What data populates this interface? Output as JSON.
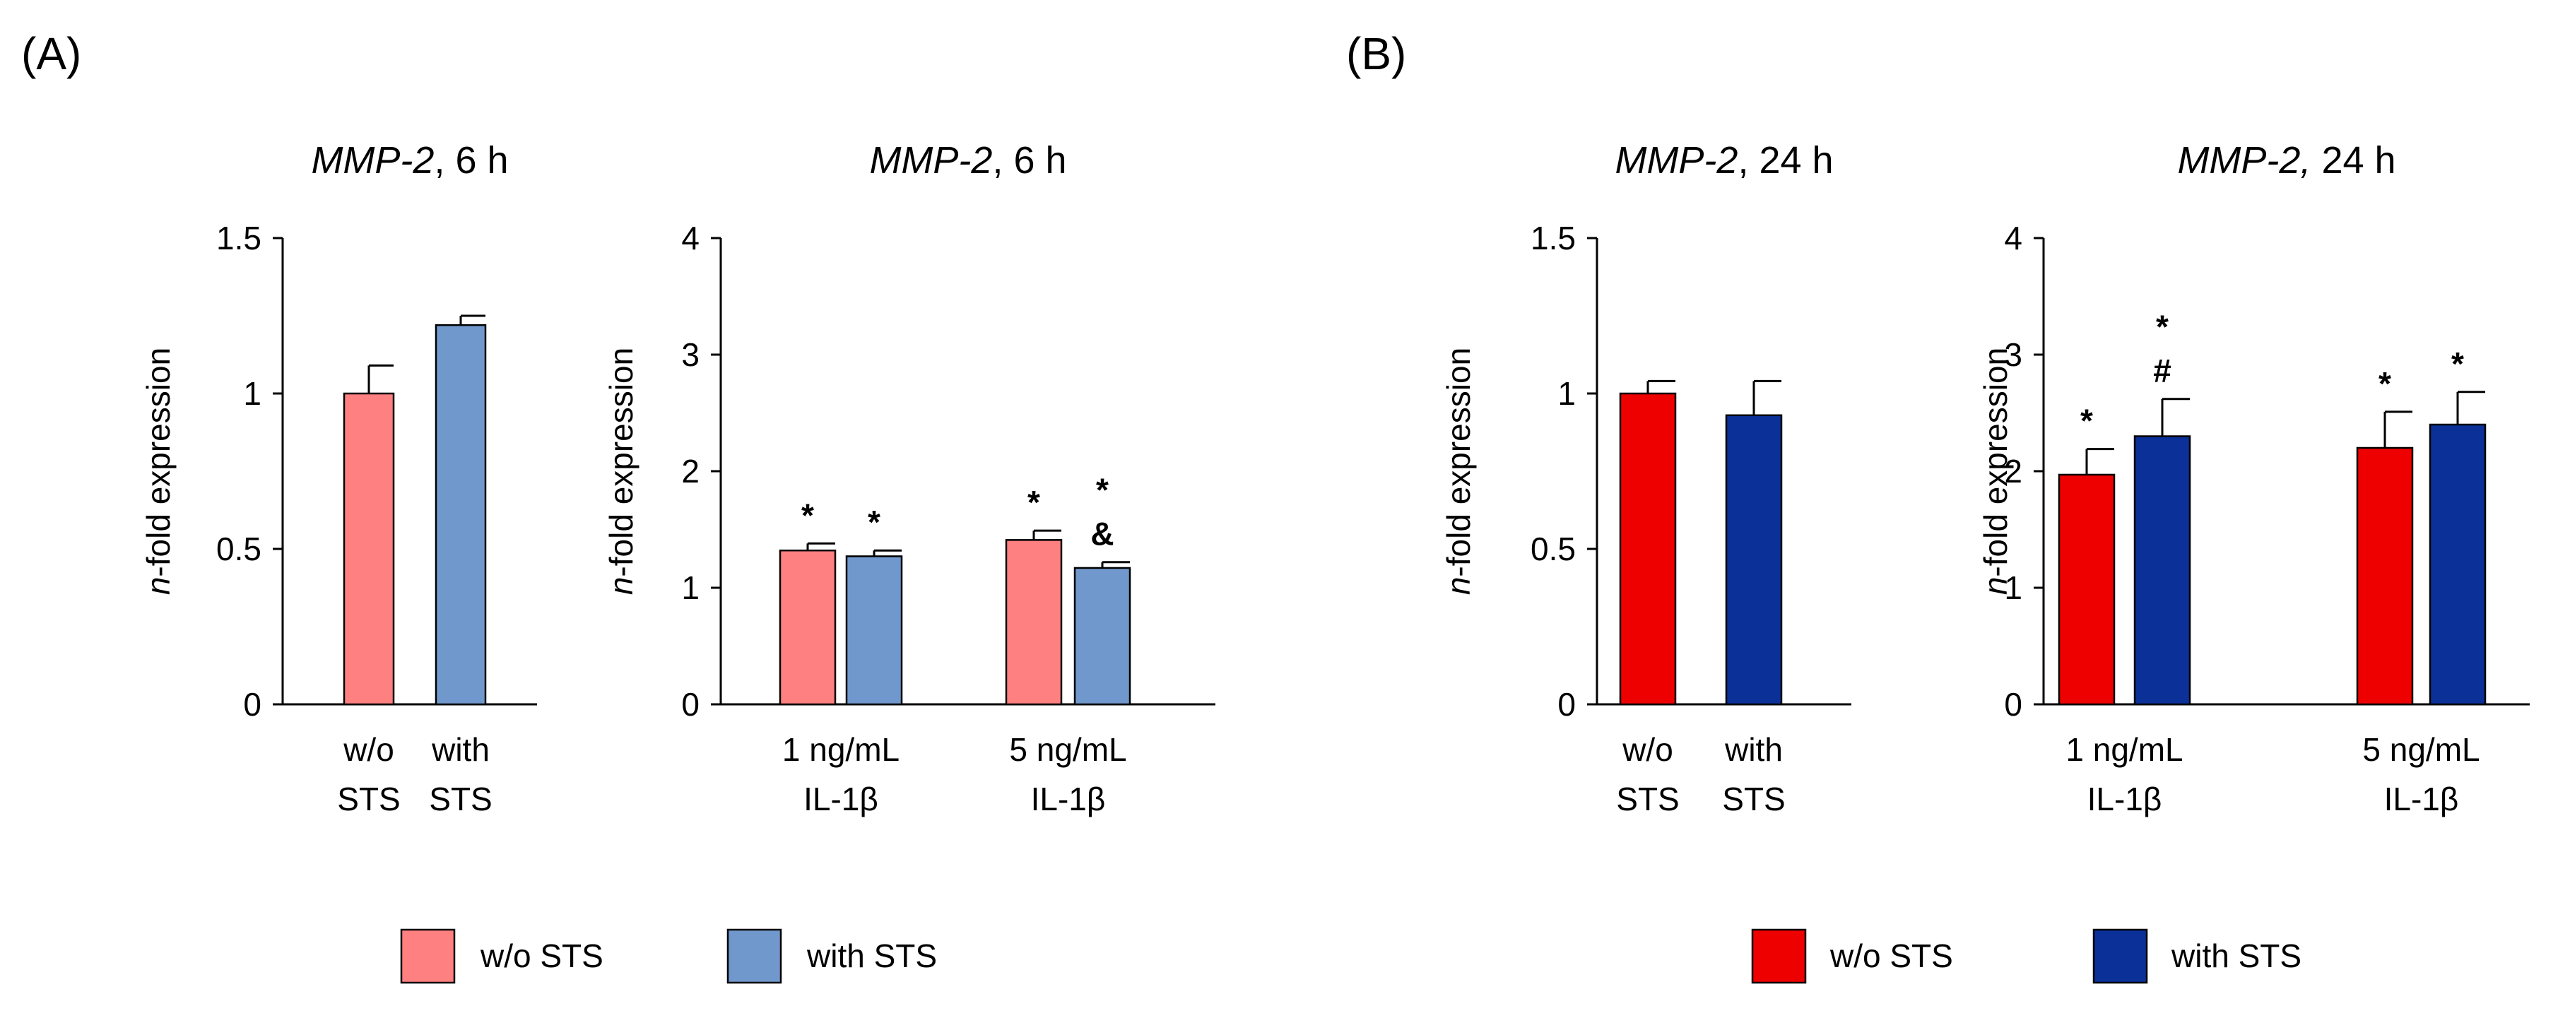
{
  "panels": [
    {
      "label": "(A)"
    },
    {
      "label": "(B)"
    }
  ],
  "legends": [
    {
      "items": [
        {
          "label": "w/o STS",
          "color": "#ff8080"
        },
        {
          "label": "with STS",
          "color": "#7098cc"
        }
      ]
    },
    {
      "items": [
        {
          "label": "w/o STS",
          "color": "#ee0000"
        },
        {
          "label": "with STS",
          "color": "#0b3199"
        }
      ]
    }
  ],
  "chart_data": [
    {
      "type": "bar",
      "title_gene": "MMP-2",
      "title_rest": ", 6 h",
      "ylabel_italic": "n",
      "ylabel_rest": "-fold expression",
      "ylim": [
        0,
        1.5
      ],
      "yticks": [
        "0",
        "0.5",
        "1",
        "1.5"
      ],
      "ytick_values": [
        0,
        0.5,
        1,
        1.5
      ],
      "categories": [
        [
          "w/o",
          "STS"
        ],
        [
          "with",
          "STS"
        ]
      ],
      "series": [
        {
          "name": "w/o STS",
          "color": "#ff8080",
          "values": [
            1.0,
            null
          ],
          "errors": [
            0.09,
            null
          ],
          "annotations": [
            [],
            []
          ]
        },
        {
          "name": "with STS",
          "color": "#7098cc",
          "values": [
            null,
            1.22
          ],
          "errors": [
            null,
            0.03
          ],
          "annotations": [
            [],
            []
          ]
        }
      ]
    },
    {
      "type": "bar",
      "title_gene": "MMP-2",
      "title_rest": ", 6 h",
      "ylabel_italic": "n",
      "ylabel_rest": "-fold expression",
      "ylim": [
        0,
        4
      ],
      "yticks": [
        "0",
        "1",
        "2",
        "3",
        "4"
      ],
      "ytick_values": [
        0,
        1,
        2,
        3,
        4
      ],
      "categories": [
        [
          "1 ng/mL",
          "IL-1β"
        ],
        [
          "5 ng/mL",
          "IL-1β"
        ]
      ],
      "series": [
        {
          "name": "w/o STS",
          "color": "#ff8080",
          "values": [
            1.32,
            1.41
          ],
          "errors": [
            0.06,
            0.08
          ],
          "annotations": [
            [
              "*"
            ],
            [
              "*"
            ]
          ]
        },
        {
          "name": "with STS",
          "color": "#7098cc",
          "values": [
            1.27,
            1.17
          ],
          "errors": [
            0.05,
            0.05
          ],
          "annotations": [
            [
              "*"
            ],
            [
              "&",
              "*"
            ]
          ]
        }
      ]
    },
    {
      "type": "bar",
      "title_gene": "MMP-2",
      "title_rest": ", 24 h",
      "ylabel_italic": "n",
      "ylabel_rest": "-fold expression",
      "ylim": [
        0,
        1.5
      ],
      "yticks": [
        "0",
        "0.5",
        "1",
        "1.5"
      ],
      "ytick_values": [
        0,
        0.5,
        1,
        1.5
      ],
      "categories": [
        [
          "w/o",
          "STS"
        ],
        [
          "with",
          "STS"
        ]
      ],
      "series": [
        {
          "name": "w/o STS",
          "color": "#ee0000",
          "values": [
            1.0,
            null
          ],
          "errors": [
            0.04,
            null
          ],
          "annotations": [
            [],
            []
          ]
        },
        {
          "name": "with STS",
          "color": "#0b3199",
          "values": [
            null,
            0.93
          ],
          "errors": [
            null,
            0.11
          ],
          "annotations": [
            [],
            []
          ]
        }
      ]
    },
    {
      "type": "bar",
      "title_gene": "MMP-2,",
      "title_rest": " 24 h",
      "ylabel_italic": "n",
      "ylabel_rest": "-fold expression",
      "ylim": [
        0,
        4
      ],
      "yticks": [
        "0",
        "1",
        "2",
        "3",
        "4"
      ],
      "ytick_values": [
        0,
        1,
        2,
        3,
        4
      ],
      "categories": [
        [
          "1 ng/mL",
          "IL-1β"
        ],
        [
          "5 ng/mL",
          "IL-1β"
        ]
      ],
      "series": [
        {
          "name": "w/o STS",
          "color": "#ee0000",
          "values": [
            1.97,
            2.2
          ],
          "errors": [
            0.22,
            0.31
          ],
          "annotations": [
            [
              "*"
            ],
            [
              "*"
            ]
          ]
        },
        {
          "name": "with STS",
          "color": "#0b3199",
          "values": [
            2.3,
            2.4
          ],
          "errors": [
            0.32,
            0.28
          ],
          "annotations": [
            [
              "#",
              "*"
            ],
            [
              "*"
            ]
          ]
        }
      ]
    }
  ]
}
